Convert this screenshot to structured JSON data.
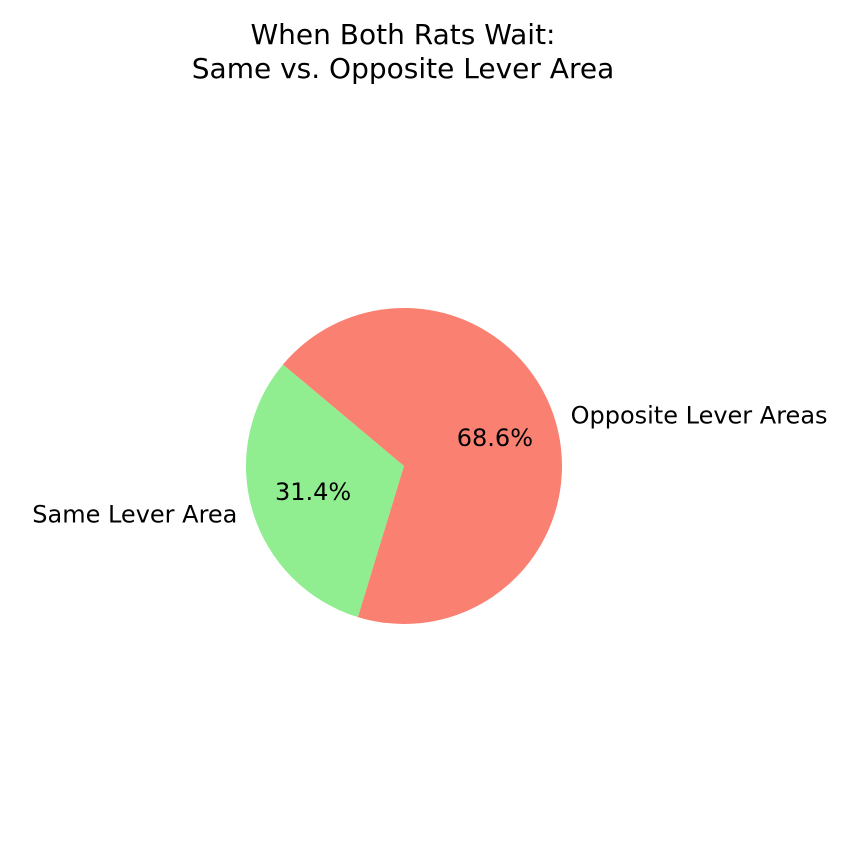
{
  "chart_data": {
    "type": "pie",
    "title_lines": [
      "When Both Rats Wait:",
      "Same vs. Opposite Lever Area"
    ],
    "slices": [
      {
        "label": "Same Lever Area",
        "value": 31.4,
        "pct_label": "31.4%",
        "color": "#90ee90"
      },
      {
        "label": "Opposite Lever Areas",
        "value": 68.6,
        "pct_label": "68.6%",
        "color": "#fa8072"
      }
    ],
    "start_angle_deg": 140,
    "direction": "counterclockwise"
  }
}
